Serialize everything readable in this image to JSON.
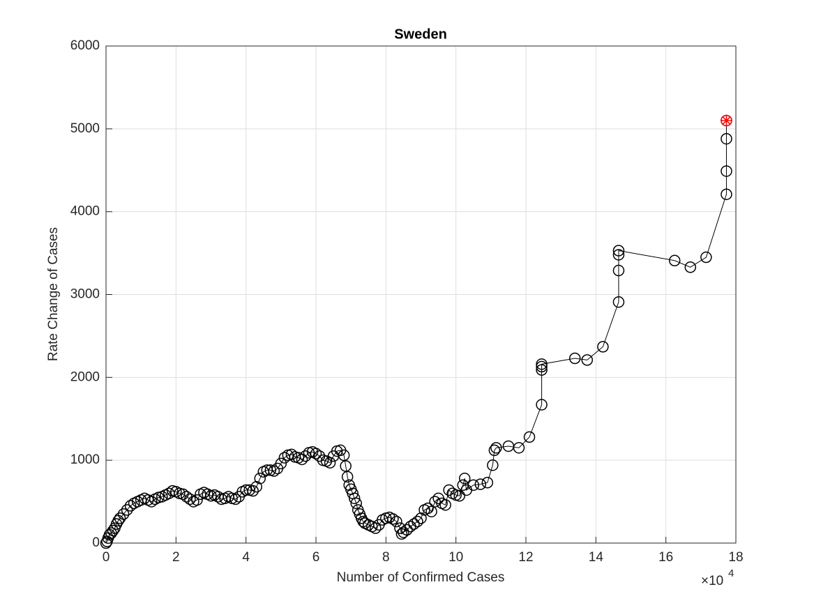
{
  "chart_data": {
    "type": "line",
    "title": "Sweden",
    "x_label": "Number of Confirmed Cases",
    "y_label": "Rate Change of Cases",
    "x_multiplier": "×10",
    "x_multiplier_exponent": "4",
    "xlim": [
      0,
      180000
    ],
    "ylim": [
      0,
      6000
    ],
    "xticks": [
      {
        "value": 0,
        "label": "0"
      },
      {
        "value": 20000,
        "label": "2"
      },
      {
        "value": 40000,
        "label": "4"
      },
      {
        "value": 60000,
        "label": "6"
      },
      {
        "value": 80000,
        "label": "8"
      },
      {
        "value": 100000,
        "label": "10"
      },
      {
        "value": 120000,
        "label": "12"
      },
      {
        "value": 140000,
        "label": "14"
      },
      {
        "value": 160000,
        "label": "16"
      },
      {
        "value": 180000,
        "label": "18"
      }
    ],
    "yticks": [
      0,
      1000,
      2000,
      3000,
      4000,
      5000,
      6000
    ],
    "grid": true,
    "series": [
      {
        "color": "#000000",
        "marker": "circle",
        "x": [
          0,
          300,
          600,
          1000,
          1500,
          2000,
          2500,
          3000,
          3500,
          4000,
          5000,
          6000,
          7000,
          8000,
          9000,
          10000,
          11000,
          12000,
          13000,
          14000,
          15000,
          16000,
          17000,
          18000,
          19000,
          20000,
          21000,
          22000,
          23000,
          24000,
          25000,
          26000,
          27000,
          28000,
          29000,
          30000,
          31000,
          32000,
          33000,
          34000,
          35000,
          36000,
          37000,
          38000,
          39000,
          40000,
          41000,
          42000,
          43000,
          44000,
          45000,
          46000,
          47000,
          48000,
          49000,
          50000,
          51000,
          52000,
          53000,
          54000,
          55000,
          56000,
          57000,
          58000,
          59000,
          60000,
          61000,
          62000,
          63000,
          64000,
          65000,
          66000,
          67000,
          68000,
          68500,
          69000,
          69500,
          70000,
          70500,
          71000,
          71500,
          72000,
          72500,
          73000,
          73500,
          74000,
          75000,
          76000,
          77000,
          78000,
          79000,
          80000,
          81000,
          82000,
          83000,
          84000,
          84500,
          85000,
          86000,
          87000,
          88000,
          89000,
          90000,
          91000,
          92000,
          93000,
          94000,
          95000,
          96000,
          97000,
          98000,
          99000,
          100000,
          101000,
          102000,
          102500,
          103000,
          105000,
          107000,
          109000,
          110500,
          111000,
          111500,
          115000,
          118000,
          121000,
          124500,
          124500,
          124500,
          124500,
          134000,
          137500,
          142000,
          146500,
          146500,
          146500,
          146500,
          162500,
          167000,
          171500,
          177300,
          177300,
          177300,
          177300
        ],
        "values": [
          0,
          20,
          60,
          100,
          120,
          150,
          180,
          230,
          270,
          300,
          350,
          400,
          450,
          480,
          500,
          520,
          540,
          520,
          500,
          530,
          550,
          560,
          580,
          600,
          630,
          620,
          600,
          590,
          560,
          530,
          500,
          520,
          590,
          610,
          590,
          570,
          580,
          560,
          530,
          540,
          560,
          540,
          530,
          560,
          620,
          640,
          640,
          630,
          680,
          780,
          860,
          880,
          880,
          870,
          900,
          960,
          1030,
          1060,
          1070,
          1040,
          1030,
          1010,
          1050,
          1090,
          1100,
          1080,
          1050,
          1000,
          990,
          970,
          1050,
          1110,
          1120,
          1060,
          930,
          800,
          700,
          650,
          600,
          540,
          480,
          400,
          350,
          300,
          260,
          240,
          220,
          200,
          180,
          220,
          280,
          300,
          310,
          290,
          260,
          180,
          110,
          130,
          160,
          200,
          230,
          260,
          300,
          400,
          420,
          380,
          500,
          540,
          480,
          460,
          640,
          600,
          580,
          570,
          700,
          780,
          640,
          700,
          710,
          730,
          940,
          1120,
          1150,
          1170,
          1150,
          1280,
          1670,
          2090,
          2130,
          2160,
          2230,
          2210,
          2370,
          2910,
          3290,
          3480,
          3530,
          3410,
          3330,
          3450,
          4210,
          4490,
          4880,
          5100
        ]
      },
      {
        "color": "#ff0000",
        "marker": "circle-asterisk",
        "x": [
          177300
        ],
        "values": [
          5100
        ]
      }
    ]
  }
}
